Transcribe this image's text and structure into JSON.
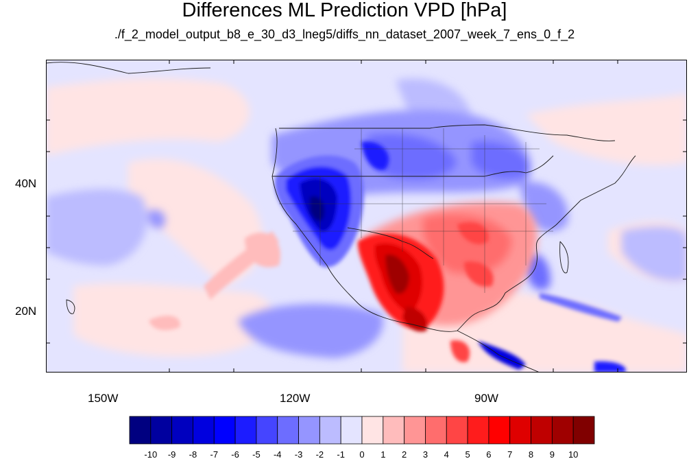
{
  "title": "Differences ML Prediction VPD [hPa]",
  "subtitle": "./f_2_model_output_b8_e_30_d3_lneg5/diffs_nn_dataset_2007_week_7_ens_0_f_2",
  "map": {
    "lon_range": [
      -160,
      -60
    ],
    "lat_range": [
      10,
      59
    ],
    "lat_labels": [
      "40N",
      "20N"
    ],
    "lon_labels": [
      "150W",
      "120W",
      "90W"
    ]
  },
  "colorbar": {
    "labels": [
      "-10",
      "-9",
      "-8",
      "-7",
      "-6",
      "-5",
      "-4",
      "-3",
      "-2",
      "-1",
      "0",
      "1",
      "2",
      "3",
      "4",
      "5",
      "6",
      "7",
      "8",
      "9",
      "10"
    ],
    "colors": [
      "#000080",
      "#00009f",
      "#0000bf",
      "#0000df",
      "#0000ff",
      "#1c1cff",
      "#4545ff",
      "#6d6dff",
      "#9595ff",
      "#bcbcff",
      "#e4e4ff",
      "#ffe4e4",
      "#ffbcbc",
      "#ff9595",
      "#ff6d6d",
      "#ff4545",
      "#ff1c1c",
      "#ff0000",
      "#df0000",
      "#bf0000",
      "#9f0000",
      "#800000"
    ]
  }
}
